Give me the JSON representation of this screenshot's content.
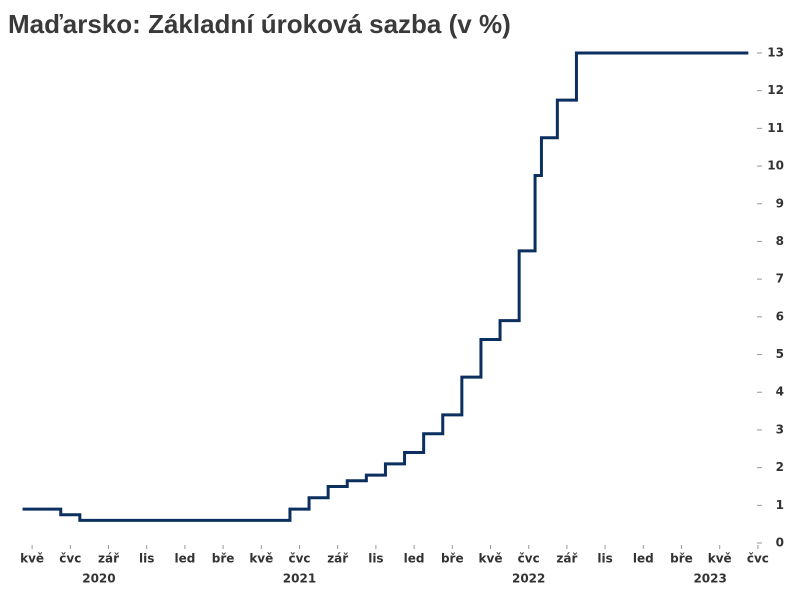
{
  "chart_data": {
    "type": "step",
    "title": "Maďarsko: Základní úroková sazba (v %)",
    "x": [
      "2020-04",
      "2020-06",
      "2020-07",
      "2021-06",
      "2021-07",
      "2021-08",
      "2021-09",
      "2021-10",
      "2021-11",
      "2021-12",
      "2022-01",
      "2022-02",
      "2022-03",
      "2022-04",
      "2022-05",
      "2022-06",
      "2022-07",
      "2022-07",
      "2022-08",
      "2022-09",
      "2023-06"
    ],
    "series": [
      {
        "color": "#0b2f5e",
        "values": [
          0.9,
          0.75,
          0.6,
          0.9,
          1.2,
          1.5,
          1.65,
          1.8,
          2.1,
          2.4,
          2.9,
          3.4,
          4.4,
          5.4,
          5.9,
          7.75,
          9.75,
          10.75,
          11.75,
          13,
          13
        ]
      }
    ],
    "xlim": [
      "2020-04",
      "2023-07"
    ],
    "xticks": [
      {
        "value": "2020-05",
        "label": "kvě"
      },
      {
        "value": "2020-07",
        "label": "čvc"
      },
      {
        "value": "2020-09",
        "label": "zář"
      },
      {
        "value": "2020-11",
        "label": "lis"
      },
      {
        "value": "2021-01",
        "label": "led"
      },
      {
        "value": "2021-03",
        "label": "bře"
      },
      {
        "value": "2021-05",
        "label": "kvě"
      },
      {
        "value": "2021-07",
        "label": "čvc"
      },
      {
        "value": "2021-09",
        "label": "zář"
      },
      {
        "value": "2021-11",
        "label": "lis"
      },
      {
        "value": "2022-01",
        "label": "led"
      },
      {
        "value": "2022-03",
        "label": "bře"
      },
      {
        "value": "2022-05",
        "label": "kvě"
      },
      {
        "value": "2022-07",
        "label": "čvc"
      },
      {
        "value": "2022-09",
        "label": "zář"
      },
      {
        "value": "2022-11",
        "label": "lis"
      },
      {
        "value": "2023-01",
        "label": "led"
      },
      {
        "value": "2023-03",
        "label": "bře"
      },
      {
        "value": "2023-05",
        "label": "kvě"
      },
      {
        "value": "2023-07",
        "label": "čvc"
      }
    ],
    "years": [
      "2020",
      "2021",
      "2022",
      "2023"
    ],
    "ylim": [
      0,
      13
    ],
    "yticks": [
      0,
      1,
      2,
      3,
      4,
      5,
      6,
      7,
      8,
      9,
      10,
      11,
      12,
      13
    ],
    "y_axis_side": "right",
    "grid": false
  }
}
